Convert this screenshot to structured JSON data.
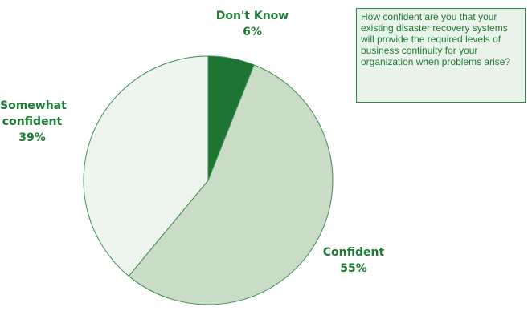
{
  "chart_data": {
    "type": "pie",
    "title": "",
    "categories": [
      "Don't Know",
      "Confident",
      "Somewhat confident"
    ],
    "values": [
      6,
      55,
      39
    ],
    "value_labels": [
      "6%",
      "55%",
      "39%"
    ],
    "colors": [
      "#1d7433",
      "#c8dcc6",
      "#eef5ee"
    ],
    "start_angle_deg": 0,
    "direction": "clockwise",
    "legend": "none"
  },
  "labels": {
    "dont_know": {
      "name": "Don't Know",
      "value": "6%"
    },
    "confident": {
      "name": "Confident",
      "value": "55%"
    },
    "somewhat": {
      "line1": "Somewhat",
      "line2": "confident",
      "value": "39%"
    }
  },
  "question": "How confident are you that your existing disaster recovery systems will provide the required levels of business continuity for your organization when problems arise?",
  "colors": {
    "text": "#1e7b34",
    "stroke": "#3c8f4f",
    "box_bg": "#eaf3e9"
  }
}
